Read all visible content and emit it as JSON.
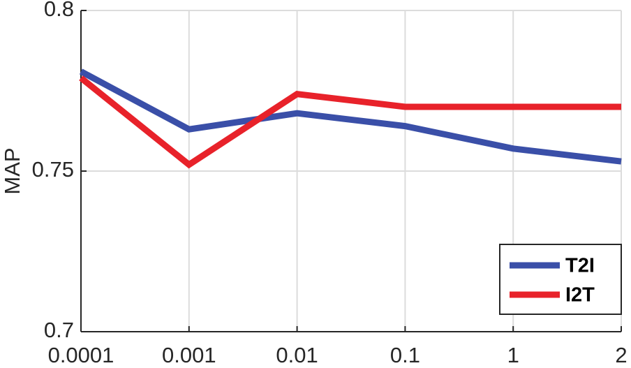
{
  "chart_data": {
    "type": "line",
    "y_label": "MAP",
    "categories": [
      "0.0001",
      "0.001",
      "0.01",
      "0.1",
      "1",
      "2"
    ],
    "series": [
      {
        "name": "T2I",
        "color": "#3a4fa8",
        "values": [
          0.781,
          0.763,
          0.768,
          0.764,
          0.757,
          0.753
        ]
      },
      {
        "name": "I2T",
        "color": "#e8222a",
        "values": [
          0.779,
          0.752,
          0.774,
          0.77,
          0.77,
          0.77
        ]
      }
    ],
    "ylim": [
      0.7,
      0.8
    ],
    "yticks": [
      0.7,
      0.75,
      0.8
    ],
    "grid": true,
    "legend": "lower right"
  }
}
